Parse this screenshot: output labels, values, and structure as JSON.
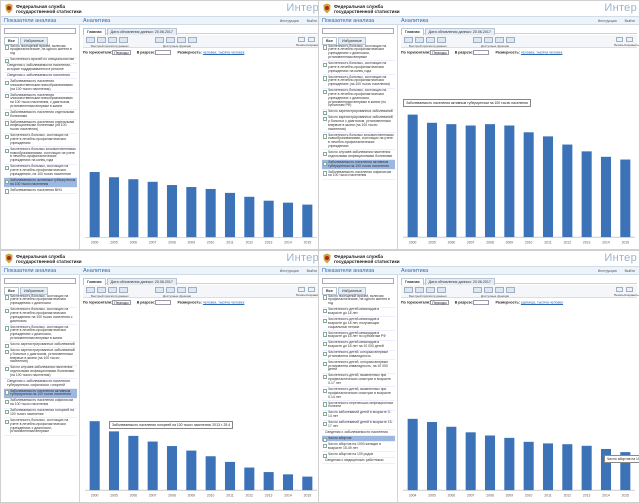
{
  "header": {
    "org_line1": "Федеральная служба",
    "org_line2": "государственной статистики",
    "brand": "Интер"
  },
  "titles": {
    "left": "Показатели анализа",
    "right": "Аналитика",
    "links": [
      "Инструкция",
      "Выйти"
    ]
  },
  "search": {
    "placeholder": ""
  },
  "left_tabs": [
    "Все",
    "Избранные"
  ],
  "right_tabs": [
    "Главная",
    "Дата обновления данных: 20.06.2017"
  ],
  "toolbar": {
    "buttons": [
      "Быстрый просмотр данных",
      "Доступные функции"
    ],
    "right_captions": [
      "Печать",
      "Сохранить"
    ]
  },
  "filters": {
    "horizontal_label": "По горизонтали:",
    "horizontal_value": "Периоды",
    "vertical_label": "В разрезе:",
    "vertical_value": "",
    "dimension_label": "Размерность:",
    "dimension_value_1": "человек, тысяча человек",
    "dimension_value_4": "единица, тысяча человек"
  },
  "tree": {
    "panel1": [
      {
        "text": "Число посещений врачей, включая профилактические, на одного жителя в год",
        "kind": "item"
      },
      {
        "text": "Численность врачей по специальностям",
        "kind": "item"
      },
      {
        "text": "Сведения о заболеваемости населения, которые поддерживаются в регионе",
        "kind": "sec"
      },
      {
        "text": "Сведения о заболеваемости населения",
        "kind": "sec"
      },
      {
        "text": "Заболеваемость населения злокачественными новообразованиями (на 100 тысяч населения)",
        "kind": "item"
      },
      {
        "text": "Заболеваемость населения злокачественными новообразованиями на 100 тысяч населения, с диагнозом, установленным впервые в жизни",
        "kind": "item"
      },
      {
        "text": "Заболеваемость населения отдельными болезнями",
        "kind": "item"
      },
      {
        "text": "Заболеваемость населения отдельными инфекционными болезнями (на 100 тысяч населения)",
        "kind": "item"
      },
      {
        "text": "Численность больных, состоящих на учете в лечебно-профилактических учреждениях",
        "kind": "item"
      },
      {
        "text": "Численность больных злокачественными новообразованиями, состоящих на учете в лечебно-профилактических учреждениях на конец года",
        "kind": "item"
      },
      {
        "text": "Численность больных, состоящих на учете в лечебно-профилактических учреждениях, на 100 тысяч населения",
        "kind": "item"
      },
      {
        "text": "Заболеваемость активным туберкулезом на 100 тысяч населения",
        "kind": "item",
        "selected": true
      },
      {
        "text": "Заболеваемость населения ВИЧ",
        "kind": "item"
      }
    ],
    "panel2": [
      {
        "text": "Численность больных, состоящих на учете в лечебно-профилактических учреждениях с диагнозом, установленным впервые",
        "kind": "item"
      },
      {
        "text": "Численность больных, состоящих на учете в лечебно-профилактических учреждениях на конец года",
        "kind": "item"
      },
      {
        "text": "Численность больных, состоящих на учете в лечебно-профилактических учреждениях (на 100 тысяч населения)",
        "kind": "item"
      },
      {
        "text": "Численность больных, состоящих на учете в лечебно-профилактических учреждениях с диагнозом, установленным впервые в жизни (по субъектам РФ)",
        "kind": "item"
      },
      {
        "text": "Число зарегистрированных заболеваний",
        "kind": "item"
      },
      {
        "text": "Число зарегистрированных заболеваний у больных с диагнозом, установленным впервые в жизни (на 100 тысяч населения)",
        "kind": "item"
      },
      {
        "text": "Численность больных злокачественными новообразованиями, состоящих на учете в лечебно-профилактических учреждениях",
        "kind": "item"
      },
      {
        "text": "Число случаев заболевания населения отдельными инфекционными болезнями",
        "kind": "item"
      },
      {
        "text": "Заболеваемость населения активным туберкулезом на 100 тысяч населения",
        "kind": "item",
        "selected": true
      },
      {
        "text": "Заболеваемость населения сифилисом на 100 тысяч населения",
        "kind": "item"
      }
    ],
    "panel3": [
      {
        "text": "Численность больных, состоящих на учете в лечебно-профилактических учреждениях с диагнозом",
        "kind": "item"
      },
      {
        "text": "Численность больных, состоящих на учете в лечебно-профилактических учреждениях на 100 тысяч населения с диагнозом",
        "kind": "item"
      },
      {
        "text": "Численность больных, состоящих на учете в лечебно-профилактических учреждениях с диагнозом, установленным впервые в жизни",
        "kind": "item"
      },
      {
        "text": "Число зарегистрированных заболеваний",
        "kind": "item"
      },
      {
        "text": "Число зарегистрированных заболеваний у больных с диагнозом, установленным впервые в жизни (на 100 тысяч населения)",
        "kind": "item"
      },
      {
        "text": "Число случаев заболевания населения отдельными инфекционными болезнями (на 100 тысяч населения)",
        "kind": "item"
      },
      {
        "text": "Сведения о заболеваемости населения туберкулезом, сифилисом, гонореей",
        "kind": "sec"
      },
      {
        "text": "Заболеваемость населения активным туберкулезом на 100 тысяч населения",
        "kind": "item",
        "selected": true
      },
      {
        "text": "Заболеваемость населения сифилисом на 100 тысяч населения",
        "kind": "item"
      },
      {
        "text": "Заболеваемость населения гонореей на 100 тысяч населения",
        "kind": "item"
      },
      {
        "text": "Численность больных, состоящих на учете в лечебно-профилактических учреждениях с диагнозом, установленным впервые",
        "kind": "item"
      }
    ],
    "panel4": [
      {
        "text": "Число посещений врачей, включая профилактические, на одного жителя в год",
        "kind": "item"
      },
      {
        "text": "Численность детей-инвалидов в возрасте до 18 лет",
        "kind": "item"
      },
      {
        "text": "Численность детей-инвалидов в возрасте до 18 лет, получающих социальные пенсии",
        "kind": "item"
      },
      {
        "text": "Численность детей-инвалидов в возрасте до 18 лет по субъектам РФ",
        "kind": "item"
      },
      {
        "text": "Численность детей-инвалидов в возрасте до 18 лет на 10 000 детей",
        "kind": "item"
      },
      {
        "text": "Численность детей, которым впервые установлена инвалидность",
        "kind": "item"
      },
      {
        "text": "Численность детей, которым впервые установлена инвалидность, на 10 000 детей",
        "kind": "item"
      },
      {
        "text": "Численность детей, выявленных при профилактических осмотрах в возрасте 0-17 лет",
        "kind": "item"
      },
      {
        "text": "Численность детей, выявленных при профилактических осмотрах в возрасте 0-14 лет",
        "kind": "item"
      },
      {
        "text": "Численность перенесших инфекционные болезни",
        "kind": "item"
      },
      {
        "text": "Число заболеваний детей в возрасте 0-14 лет",
        "kind": "item"
      },
      {
        "text": "Число заболеваний детей в возрасте 15-17 лет",
        "kind": "item"
      },
      {
        "text": "Сведения о заболеваемости населения",
        "kind": "sec"
      },
      {
        "text": "Число абортов",
        "kind": "item",
        "selected": true
      },
      {
        "text": "Число абортов на 1000 женщин в возрасте 15-49 лет",
        "kind": "item"
      },
      {
        "text": "Число абортов на 100 родов",
        "kind": "item"
      },
      {
        "text": "Сведения о медицинских работниках",
        "kind": "sec"
      }
    ]
  },
  "tooltips": {
    "panel2": "Заболеваемость населения активным туберкулезом на 100 тысяч населения",
    "panel3": "Заболеваемость населения гонореей на 100 тысяч населения: 2013 г. 29.4",
    "panel4": "Число абортов на 100 родов: 2013 г. 63.7"
  },
  "chart_data": [
    {
      "type": "bar",
      "panel": 1,
      "categories": [
        "2000",
        "2005",
        "2006",
        "2007",
        "2008",
        "2009",
        "2010",
        "2011",
        "2012",
        "2013",
        "2014",
        "2015"
      ],
      "values": [
        100,
        92,
        89,
        85,
        80,
        77,
        74,
        68,
        62,
        56,
        53,
        50
      ],
      "ylim": [
        0,
        120
      ]
    },
    {
      "type": "bar",
      "panel": 2,
      "categories": [
        "2000",
        "2005",
        "2006",
        "2007",
        "2008",
        "2009",
        "2010",
        "2011",
        "2012",
        "2013",
        "2014",
        "2015"
      ],
      "values": [
        90,
        84,
        83,
        82,
        83,
        82,
        77,
        74,
        68,
        63,
        59,
        57
      ],
      "ylim": [
        0,
        100
      ]
    },
    {
      "type": "bar",
      "panel": 3,
      "categories": [
        "2000",
        "2005",
        "2006",
        "2007",
        "2008",
        "2009",
        "2010",
        "2011",
        "2012",
        "2013",
        "2014",
        "2015"
      ],
      "values": [
        61,
        52,
        48,
        43,
        39,
        35,
        30,
        25,
        20,
        16,
        14,
        12
      ],
      "ylim": [
        0,
        70
      ]
    },
    {
      "type": "bar",
      "panel": 4,
      "categories": [
        "2004",
        "2005",
        "2006",
        "2007",
        "2008",
        "2009",
        "2010",
        "2011",
        "2012",
        "2013",
        "2014",
        "2015"
      ],
      "values": [
        90,
        86,
        80,
        73,
        69,
        66,
        61,
        59,
        58,
        56,
        52,
        48
      ],
      "ylim": [
        0,
        110
      ]
    }
  ],
  "colors": {
    "bar": "#3b72b8",
    "accent": "#2d6ab0",
    "selected": "#9db8e0"
  }
}
